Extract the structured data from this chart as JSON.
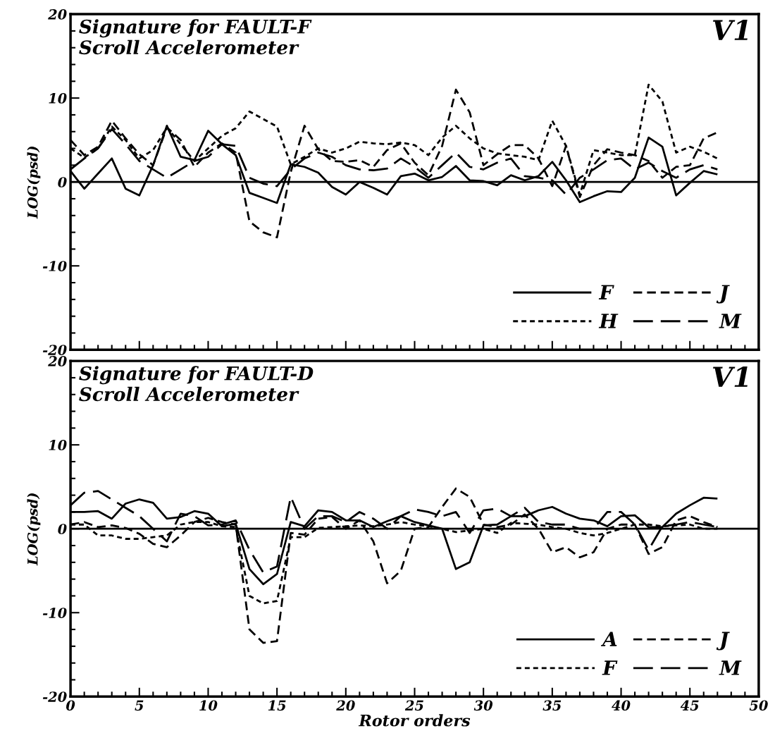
{
  "chart_data": [
    {
      "type": "line",
      "ylabel": "LOG(psd)",
      "annotations": [
        "Signature for FAULT-F",
        "Scroll Accelerometer",
        "V1"
      ],
      "x": [
        0,
        1,
        2,
        3,
        4,
        5,
        6,
        7,
        8,
        9,
        10,
        11,
        12,
        13,
        14,
        15,
        16,
        17,
        18,
        19,
        20,
        21,
        22,
        23,
        24,
        25,
        26,
        27,
        28,
        29,
        30,
        31,
        32,
        33,
        34,
        35,
        36,
        37,
        38,
        39,
        40,
        41,
        42,
        43,
        44,
        45,
        46,
        47
      ],
      "series": [
        {
          "name": "F",
          "color": "#000000",
          "line_style": "solid",
          "values": [
            1.3,
            -0.8,
            1.0,
            2.8,
            -0.8,
            -1.6,
            2.0,
            6.7,
            3.0,
            2.6,
            6.1,
            4.5,
            3.2,
            -1.3,
            -1.9,
            -2.5,
            2.1,
            1.8,
            1.1,
            -0.6,
            -1.5,
            0.0,
            -0.7,
            -1.5,
            0.7,
            1.0,
            0.2,
            0.6,
            1.9,
            0.2,
            0.1,
            -0.4,
            0.8,
            0.2,
            0.7,
            2.4,
            0.2,
            -2.4,
            -1.7,
            -1.1,
            -1.2,
            0.5,
            5.3,
            4.2,
            -1.6,
            -0.1,
            1.3,
            0.9
          ]
        },
        {
          "name": "H",
          "color": "#000000",
          "line_style": "dotted",
          "values": [
            4.0,
            2.9,
            4.0,
            6.6,
            5.0,
            2.8,
            3.8,
            6.5,
            4.5,
            2.5,
            4.0,
            5.5,
            6.4,
            8.4,
            7.5,
            6.6,
            2.1,
            3.0,
            4.0,
            3.5,
            4.0,
            4.8,
            4.6,
            4.5,
            4.7,
            4.4,
            3.2,
            5.3,
            6.7,
            5.2,
            4.0,
            3.4,
            3.2,
            3.0,
            2.6,
            7.3,
            4.3,
            -1.5,
            3.8,
            3.5,
            3.2,
            3.2,
            11.6,
            9.6,
            3.5,
            4.2,
            3.6,
            2.8
          ]
        },
        {
          "name": "J",
          "color": "#000000",
          "line_style": "dashed",
          "values": [
            5.0,
            3.2,
            4.2,
            7.3,
            5.2,
            3.3,
            2.0,
            6.5,
            5.0,
            1.8,
            3.5,
            4.6,
            3.5,
            -4.7,
            -6.0,
            -6.6,
            1.2,
            6.7,
            3.9,
            2.5,
            2.4,
            2.6,
            1.8,
            3.8,
            4.6,
            2.3,
            0.8,
            4.3,
            11.0,
            8.3,
            2.0,
            3.3,
            4.4,
            4.4,
            2.8,
            -0.5,
            4.3,
            -1.8,
            2.0,
            3.9,
            3.5,
            3.2,
            2.5,
            0.5,
            1.8,
            2.0,
            5.2,
            5.9
          ]
        },
        {
          "name": "M",
          "color": "#000000",
          "line_style": "long dashed",
          "values": [
            1.5,
            2.8,
            4.0,
            6.3,
            4.5,
            2.5,
            1.5,
            0.5,
            1.5,
            2.5,
            3.0,
            4.5,
            4.3,
            0.5,
            -0.2,
            -0.5,
            1.5,
            2.8,
            3.5,
            3.0,
            2.0,
            1.5,
            1.4,
            1.6,
            2.8,
            1.8,
            0.5,
            2.0,
            3.5,
            1.8,
            1.5,
            2.3,
            2.8,
            0.7,
            0.5,
            0.2,
            -1.5,
            0.5,
            1.5,
            2.6,
            2.8,
            1.5,
            2.3,
            1.3,
            0.5,
            1.5,
            2.0,
            1.5
          ]
        }
      ],
      "xlim": [
        0,
        50
      ],
      "xticks": [
        0,
        5,
        10,
        15,
        20,
        25,
        30,
        35,
        40,
        45,
        50
      ],
      "ylim": [
        -20,
        20
      ],
      "yticks": [
        -20,
        -10,
        0,
        10,
        20
      ],
      "tick_labels": "y",
      "grid": false,
      "legend": "bottom right",
      "ref_lines": [
        {
          "axis": "y",
          "value": 0,
          "color": "#000000",
          "line_style": "solid"
        }
      ]
    },
    {
      "type": "line",
      "ylabel": "LOG(psd)",
      "xlabel": "Rotor orders",
      "annotations": [
        "Signature for FAULT-D",
        "Scroll Accelerometer",
        "V1"
      ],
      "x": [
        0,
        1,
        2,
        3,
        4,
        5,
        6,
        7,
        8,
        9,
        10,
        11,
        12,
        13,
        14,
        15,
        16,
        17,
        18,
        19,
        20,
        21,
        22,
        23,
        24,
        25,
        26,
        27,
        28,
        29,
        30,
        31,
        32,
        33,
        34,
        35,
        36,
        37,
        38,
        39,
        40,
        41,
        42,
        43,
        44,
        45,
        46,
        47
      ],
      "series": [
        {
          "name": "A",
          "color": "#000000",
          "line_style": "solid",
          "values": [
            2.0,
            2.0,
            2.1,
            1.2,
            3.0,
            3.5,
            3.1,
            1.2,
            1.4,
            2.1,
            1.8,
            0.3,
            0.6,
            -4.8,
            -6.6,
            -5.4,
            0.8,
            0.3,
            2.2,
            2.0,
            1.0,
            1.0,
            0.2,
            0.9,
            1.5,
            0.8,
            0.4,
            0.0,
            -4.8,
            -4.0,
            0.4,
            0.5,
            1.5,
            1.5,
            2.2,
            2.6,
            1.8,
            1.2,
            1.0,
            0.3,
            1.5,
            1.6,
            0.2,
            0.2,
            1.8,
            2.8,
            3.7,
            3.6
          ]
        },
        {
          "name": "F",
          "color": "#000000",
          "line_style": "dotted",
          "values": [
            0.5,
            0.5,
            -0.8,
            -0.8,
            -1.2,
            -1.2,
            -1.0,
            -0.8,
            0.5,
            0.8,
            0.8,
            0.3,
            0.2,
            -8.0,
            -8.9,
            -8.6,
            -1.0,
            -1.0,
            0.1,
            0.2,
            0.3,
            0.4,
            0.3,
            0.5,
            0.8,
            0.5,
            0.3,
            0.0,
            -0.4,
            -0.2,
            0.0,
            -0.5,
            0.7,
            0.6,
            0.5,
            0.2,
            0.0,
            -0.5,
            -0.8,
            -0.5,
            0.0,
            0.5,
            0.5,
            0.3,
            0.4,
            0.5,
            0.0,
            0.0
          ]
        },
        {
          "name": "J",
          "color": "#000000",
          "line_style": "dashed",
          "values": [
            0.5,
            0.8,
            0.2,
            0.4,
            0.1,
            -0.6,
            -1.8,
            -2.2,
            -0.8,
            0.8,
            1.3,
            0.8,
            0.5,
            -12.0,
            -13.6,
            -13.4,
            -0.5,
            -0.7,
            1.2,
            1.4,
            0.0,
            1.0,
            -1.5,
            -6.5,
            -5.0,
            0.0,
            0.2,
            2.6,
            4.8,
            3.8,
            0.5,
            0.2,
            0.5,
            1.7,
            0.0,
            -2.8,
            -2.2,
            -3.4,
            -2.8,
            0.0,
            0.5,
            0.5,
            -3.0,
            -2.2,
            1.0,
            1.5,
            0.8,
            0.2
          ]
        },
        {
          "name": "M",
          "color": "#000000",
          "line_style": "long dashed",
          "values": [
            2.8,
            4.3,
            4.5,
            3.5,
            2.5,
            1.5,
            0.0,
            -1.5,
            1.8,
            1.5,
            0.4,
            0.5,
            1.0,
            -2.5,
            -5.2,
            -4.5,
            3.8,
            0.0,
            1.5,
            1.5,
            0.8,
            2.0,
            1.2,
            0.0,
            1.5,
            2.3,
            2.0,
            1.5,
            2.0,
            -0.5,
            2.2,
            2.4,
            1.5,
            2.5,
            0.8,
            0.5,
            0.5,
            0.0,
            0.0,
            2.0,
            2.0,
            0.5,
            -2.5,
            0.3,
            0.5,
            0.8,
            0.5,
            0.2
          ]
        }
      ],
      "xlim": [
        0,
        50
      ],
      "xticks": [
        0,
        5,
        10,
        15,
        20,
        25,
        30,
        35,
        40,
        45,
        50
      ],
      "ylim": [
        -20,
        20
      ],
      "yticks": [
        -20,
        -10,
        0,
        10,
        20
      ],
      "grid": false,
      "legend": "bottom right",
      "ref_lines": [
        {
          "axis": "y",
          "value": 0,
          "color": "#000000",
          "line_style": "solid"
        }
      ]
    }
  ]
}
